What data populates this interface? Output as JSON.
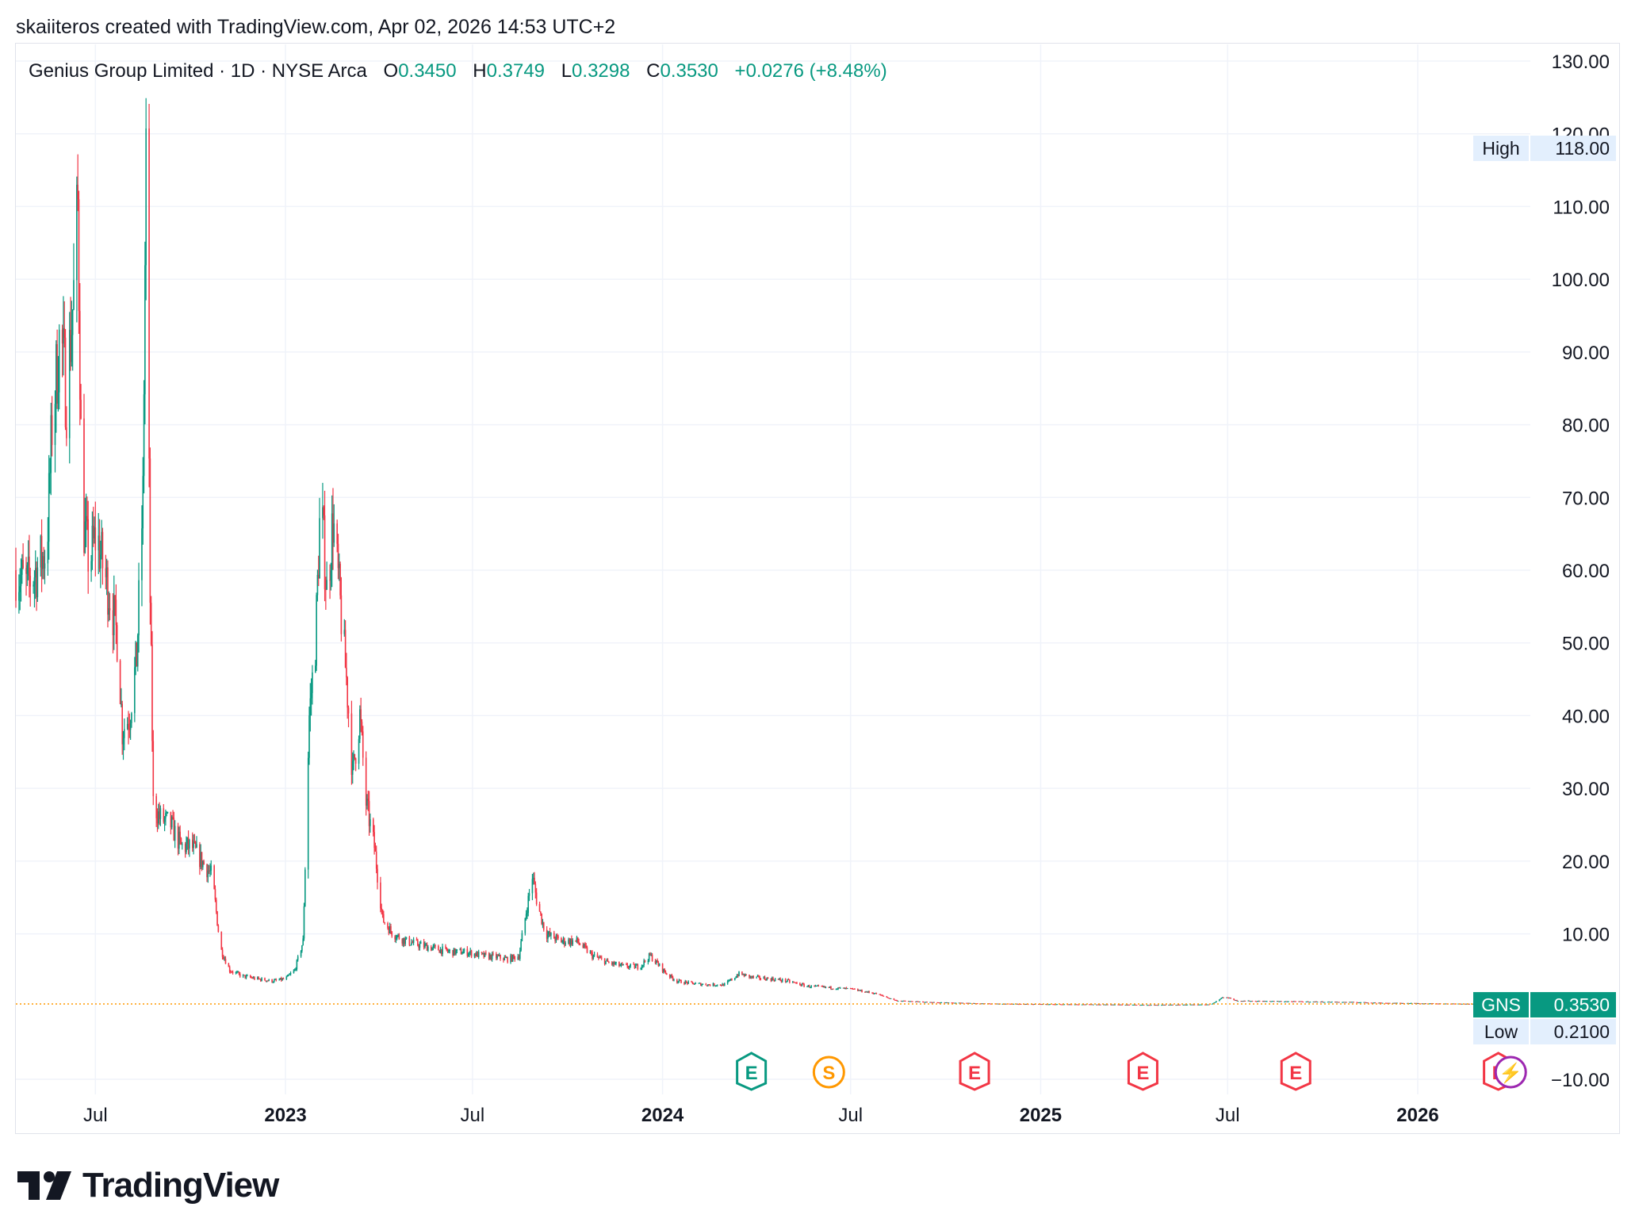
{
  "credit": "skaiiteros created with TradingView.com, Apr 02, 2026 14:53 UTC+2",
  "legend": {
    "name": "Genius Group Limited · 1D · NYSE Arca",
    "o_label": "O",
    "o": "0.3450",
    "h_label": "H",
    "h": "0.3749",
    "l_label": "L",
    "l": "0.3298",
    "c_label": "C",
    "c": "0.3530",
    "change": "+0.0276 (+8.48%)"
  },
  "brand": "TradingView",
  "colors": {
    "up": "#089981",
    "down": "#f23645",
    "grid": "#f0f3fa",
    "price_line": "#ff9800",
    "label_bg": "#e3effd",
    "symbol_bg": "#089981"
  },
  "chart_data": {
    "type": "candlestick",
    "symbol": "GNS",
    "interval": "1D",
    "exchange": "NYSE Arca",
    "y_ticks": [
      "130.00",
      "120.00",
      "110.00",
      "100.00",
      "90.00",
      "80.00",
      "70.00",
      "60.00",
      "50.00",
      "40.00",
      "30.00",
      "20.00",
      "10.00",
      "−10.00"
    ],
    "y_tick_values": [
      130,
      120,
      110,
      100,
      90,
      80,
      70,
      60,
      50,
      40,
      30,
      20,
      10,
      -10
    ],
    "ylim": [
      -10,
      130
    ],
    "x_ticks": [
      {
        "label": "Jul",
        "date": "2022-07-01",
        "bold": false
      },
      {
        "label": "2023",
        "date": "2023-01-01",
        "bold": true
      },
      {
        "label": "Jul",
        "date": "2023-07-01",
        "bold": false
      },
      {
        "label": "2024",
        "date": "2024-01-01",
        "bold": true
      },
      {
        "label": "Jul",
        "date": "2024-07-01",
        "bold": false
      },
      {
        "label": "2025",
        "date": "2025-01-01",
        "bold": true
      },
      {
        "label": "Jul",
        "date": "2025-07-01",
        "bold": false
      },
      {
        "label": "2026",
        "date": "2026-01-01",
        "bold": true
      }
    ],
    "xlim": [
      "2022-04-15",
      "2026-04-20"
    ],
    "high": {
      "label": "High",
      "value": "118.00"
    },
    "low": {
      "label": "Low",
      "value": "0.2100"
    },
    "last": {
      "label": "GNS",
      "value": "0.3530"
    },
    "price_path": [
      [
        "2022-04-15",
        60
      ],
      [
        "2022-04-25",
        58
      ],
      [
        "2022-05-05",
        60
      ],
      [
        "2022-05-15",
        63
      ],
      [
        "2022-05-20",
        80
      ],
      [
        "2022-05-28",
        93
      ],
      [
        "2022-06-03",
        84
      ],
      [
        "2022-06-10",
        98
      ],
      [
        "2022-06-14",
        110
      ],
      [
        "2022-06-18",
        68
      ],
      [
        "2022-06-25",
        61
      ],
      [
        "2022-07-02",
        65
      ],
      [
        "2022-07-09",
        60
      ],
      [
        "2022-07-16",
        56
      ],
      [
        "2022-07-23",
        50
      ],
      [
        "2022-07-27",
        38
      ],
      [
        "2022-08-03",
        40
      ],
      [
        "2022-08-10",
        48
      ],
      [
        "2022-08-16",
        70
      ],
      [
        "2022-08-19",
        118
      ],
      [
        "2022-08-23",
        56
      ],
      [
        "2022-08-26",
        28
      ],
      [
        "2022-09-01",
        26
      ],
      [
        "2022-09-12",
        25
      ],
      [
        "2022-09-22",
        22
      ],
      [
        "2022-10-02",
        22
      ],
      [
        "2022-10-12",
        20
      ],
      [
        "2022-10-22",
        18
      ],
      [
        "2022-10-30",
        8
      ],
      [
        "2022-11-08",
        5
      ],
      [
        "2022-11-20",
        4.2
      ],
      [
        "2022-12-05",
        3.8
      ],
      [
        "2022-12-20",
        3.5
      ],
      [
        "2023-01-01",
        3.8
      ],
      [
        "2023-01-10",
        5
      ],
      [
        "2023-01-18",
        9
      ],
      [
        "2023-01-24",
        40
      ],
      [
        "2023-01-30",
        50
      ],
      [
        "2023-02-04",
        70
      ],
      [
        "2023-02-10",
        57
      ],
      [
        "2023-02-16",
        67
      ],
      [
        "2023-02-22",
        57
      ],
      [
        "2023-03-01",
        45
      ],
      [
        "2023-03-07",
        32
      ],
      [
        "2023-03-14",
        40
      ],
      [
        "2023-03-20",
        28
      ],
      [
        "2023-03-28",
        22
      ],
      [
        "2023-04-05",
        12
      ],
      [
        "2023-04-15",
        10
      ],
      [
        "2023-04-28",
        9
      ],
      [
        "2023-05-10",
        8.5
      ],
      [
        "2023-05-25",
        8
      ],
      [
        "2023-06-10",
        7.5
      ],
      [
        "2023-06-25",
        7.5
      ],
      [
        "2023-07-10",
        7
      ],
      [
        "2023-07-25",
        6.8
      ],
      [
        "2023-08-05",
        6.5
      ],
      [
        "2023-08-15",
        7
      ],
      [
        "2023-08-22",
        13
      ],
      [
        "2023-08-28",
        18
      ],
      [
        "2023-09-02",
        14
      ],
      [
        "2023-09-10",
        10
      ],
      [
        "2023-09-25",
        9
      ],
      [
        "2023-10-10",
        9
      ],
      [
        "2023-10-25",
        7
      ],
      [
        "2023-11-10",
        6
      ],
      [
        "2023-11-25",
        5.5
      ],
      [
        "2023-12-10",
        5.5
      ],
      [
        "2023-12-20",
        7
      ],
      [
        "2024-01-05",
        4.5
      ],
      [
        "2024-01-15",
        3.5
      ],
      [
        "2024-01-28",
        3.2
      ],
      [
        "2024-02-15",
        3
      ],
      [
        "2024-03-01",
        3
      ],
      [
        "2024-03-15",
        4.5
      ],
      [
        "2024-03-28",
        4
      ],
      [
        "2024-04-15",
        3.8
      ],
      [
        "2024-05-01",
        3.5
      ],
      [
        "2024-05-20",
        2.8
      ],
      [
        "2024-06-10",
        2.6
      ],
      [
        "2024-07-01",
        2.4
      ],
      [
        "2024-07-25",
        1.8
      ],
      [
        "2024-08-15",
        0.8
      ],
      [
        "2024-09-15",
        0.6
      ],
      [
        "2024-10-15",
        0.5
      ],
      [
        "2024-11-15",
        0.4
      ],
      [
        "2024-12-15",
        0.35
      ],
      [
        "2025-01-15",
        0.32
      ],
      [
        "2025-02-15",
        0.3
      ],
      [
        "2025-03-15",
        0.27
      ],
      [
        "2025-04-15",
        0.23
      ],
      [
        "2025-05-15",
        0.25
      ],
      [
        "2025-06-15",
        0.3
      ],
      [
        "2025-06-28",
        1.4
      ],
      [
        "2025-07-10",
        0.8
      ],
      [
        "2025-08-01",
        0.75
      ],
      [
        "2025-09-01",
        0.7
      ],
      [
        "2025-10-01",
        0.65
      ],
      [
        "2025-11-01",
        0.6
      ],
      [
        "2025-12-01",
        0.5
      ],
      [
        "2026-01-01",
        0.45
      ],
      [
        "2026-02-01",
        0.4
      ],
      [
        "2026-03-01",
        0.36
      ],
      [
        "2026-04-02",
        0.353
      ]
    ],
    "events": [
      {
        "type": "E",
        "date": "2024-03-27",
        "kind": "earnings-reported"
      },
      {
        "type": "S",
        "date": "2024-06-10",
        "kind": "split"
      },
      {
        "type": "E",
        "date": "2024-10-29",
        "kind": "earnings-missed"
      },
      {
        "type": "E",
        "date": "2025-04-10",
        "kind": "earnings-missed"
      },
      {
        "type": "E",
        "date": "2025-09-05",
        "kind": "earnings-missed"
      },
      {
        "type": "E",
        "date": "2026-03-20",
        "kind": "earnings-missed"
      },
      {
        "type": "⚡",
        "date": "2026-04-01",
        "kind": "news"
      }
    ]
  }
}
